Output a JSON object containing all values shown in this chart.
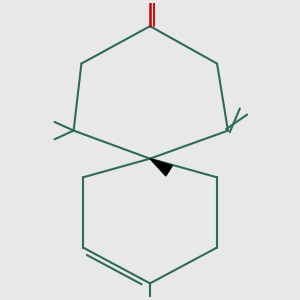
{
  "bg_color": "#e8e8e8",
  "bond_color": "#2d6b5a",
  "oxygen_color": "#cc0000",
  "figsize": [
    3.0,
    3.0
  ],
  "dpi": 100,
  "lw": 1.5
}
